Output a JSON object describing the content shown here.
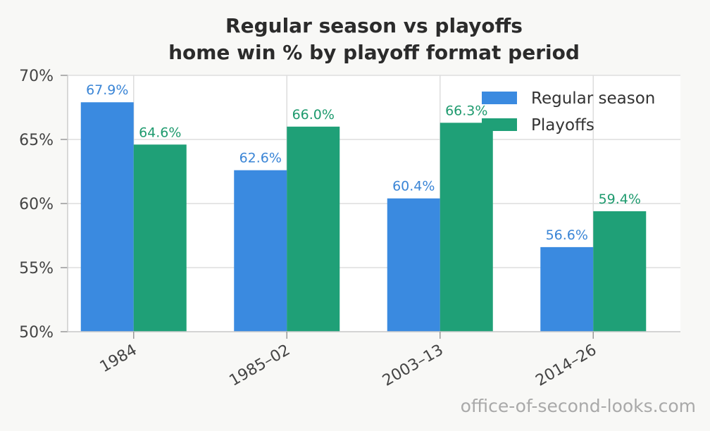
{
  "chart_data": {
    "type": "bar",
    "title": [
      "Regular season vs playoffs",
      "home win % by playoff format period"
    ],
    "xlabel": "",
    "ylabel": "",
    "categories": [
      "1984",
      "1985–02",
      "2003–13",
      "2014–26"
    ],
    "series": [
      {
        "name": "Regular season",
        "values": [
          67.9,
          62.6,
          60.4,
          56.6
        ],
        "labels": [
          "67.9%",
          "62.6%",
          "60.4%",
          "56.6%"
        ],
        "color": "#3a8ae0",
        "label_color": "#3a85d6"
      },
      {
        "name": "Playoffs",
        "values": [
          64.6,
          66.0,
          66.3,
          59.4
        ],
        "labels": [
          "64.6%",
          "66.0%",
          "66.3%",
          "59.4%"
        ],
        "color": "#1fa077",
        "label_color": "#1e9a6e"
      }
    ],
    "ylim": [
      50,
      70
    ],
    "yticks": [
      50,
      55,
      60,
      65,
      70
    ],
    "ytick_labels": [
      "50%",
      "55%",
      "60%",
      "65%",
      "70%"
    ],
    "grid": true,
    "legend_position": "top-right"
  },
  "watermark": "office-of-second-looks.com"
}
